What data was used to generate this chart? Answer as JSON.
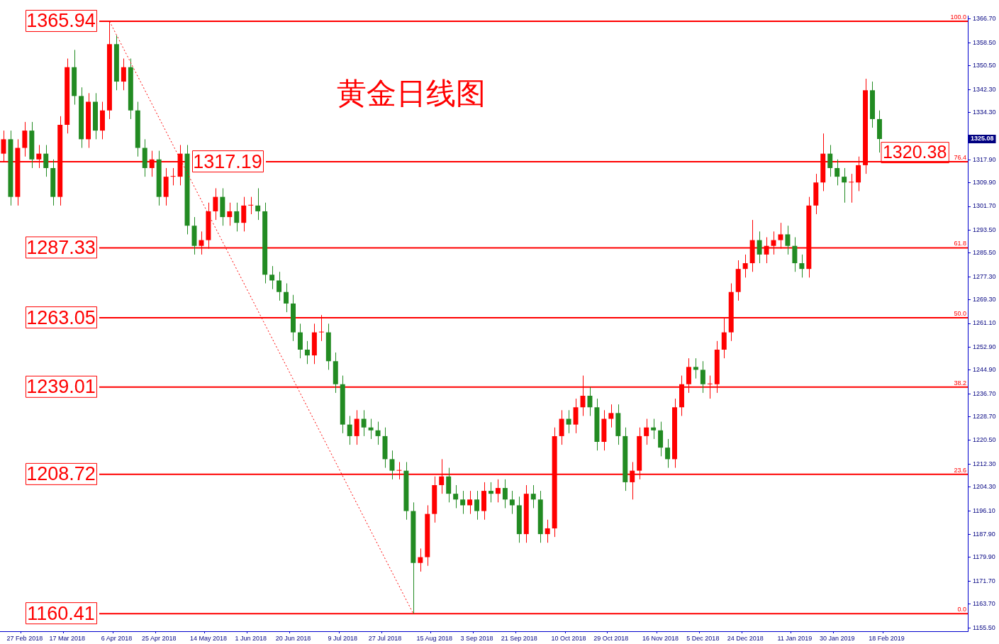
{
  "chart_data": {
    "type": "candlestick",
    "title": "黄金日线图",
    "categories": [
      null,
      null,
      null,
      "27 Feb 2018",
      null,
      null,
      null,
      null,
      null,
      "17 Mar 2018",
      null,
      null,
      null,
      null,
      null,
      null,
      "6 Apr 2018",
      null,
      null,
      null,
      null,
      null,
      "25 Apr 2018",
      null,
      null,
      null,
      null,
      null,
      null,
      "14 May 2018",
      null,
      null,
      null,
      null,
      null,
      "1 Jun 2018",
      null,
      null,
      null,
      null,
      null,
      "20 Jun 2018",
      null,
      null,
      null,
      null,
      null,
      null,
      "9 Jul 2018",
      null,
      null,
      null,
      null,
      null,
      "27 Jul 2018",
      null,
      null,
      null,
      null,
      null,
      null,
      "15 Aug 2018",
      null,
      null,
      null,
      null,
      null,
      "3 Sep 2018",
      null,
      null,
      null,
      null,
      null,
      "21 Sep 2018",
      null,
      null,
      null,
      null,
      null,
      null,
      "10 Oct 2018",
      null,
      null,
      null,
      null,
      null,
      "29 Oct 2018",
      null,
      null,
      null,
      null,
      null,
      null,
      "16 Nov 2018",
      null,
      null,
      null,
      null,
      null,
      "5 Dec 2018",
      null,
      null,
      null,
      null,
      null,
      "24 Dec 2018",
      null,
      null,
      null,
      null,
      null,
      null,
      "11 Jan 2019",
      null,
      null,
      null,
      null,
      null,
      "30 Jan 2019",
      null,
      null,
      null,
      null,
      null,
      null,
      "18 Feb 2019",
      null,
      null,
      null,
      null,
      null,
      null,
      null,
      null,
      null,
      null,
      null
    ],
    "ohlc": [
      [
        1320,
        1328,
        1317,
        1325
      ],
      [
        1325,
        1328,
        1302,
        1305
      ],
      [
        1305,
        1325,
        1302,
        1322
      ],
      [
        1322,
        1331,
        1319,
        1328
      ],
      [
        1328,
        1331,
        1315,
        1318
      ],
      [
        1318,
        1323,
        1315,
        1320
      ],
      [
        1320,
        1323,
        1312,
        1315
      ],
      [
        1315,
        1318,
        1302,
        1305
      ],
      [
        1305,
        1333,
        1302,
        1330
      ],
      [
        1330,
        1353,
        1327,
        1350
      ],
      [
        1350,
        1356,
        1337,
        1340
      ],
      [
        1340,
        1343,
        1322,
        1325
      ],
      [
        1325,
        1341,
        1322,
        1338
      ],
      [
        1338,
        1341,
        1325,
        1328
      ],
      [
        1328,
        1338,
        1325,
        1335
      ],
      [
        1335,
        1365.94,
        1332,
        1358
      ],
      [
        1358,
        1361,
        1342,
        1345
      ],
      [
        1345,
        1353,
        1342,
        1350
      ],
      [
        1350,
        1353,
        1332,
        1335
      ],
      [
        1335,
        1338,
        1319,
        1322
      ],
      [
        1322,
        1325,
        1312,
        1315
      ],
      [
        1315,
        1321,
        1312,
        1318
      ],
      [
        1318,
        1321,
        1302,
        1305
      ],
      [
        1305,
        1315,
        1302,
        1312
      ],
      [
        1312,
        1315,
        1309,
        1312
      ],
      [
        1312,
        1323,
        1309,
        1320
      ],
      [
        1320,
        1323,
        1292,
        1295
      ],
      [
        1295,
        1298,
        1285,
        1288
      ],
      [
        1288,
        1293,
        1285,
        1290
      ],
      [
        1290,
        1303,
        1287,
        1300
      ],
      [
        1300,
        1308,
        1297,
        1305
      ],
      [
        1305,
        1308,
        1295,
        1298
      ],
      [
        1298,
        1303,
        1295,
        1300
      ],
      [
        1300,
        1303,
        1293,
        1296
      ],
      [
        1296,
        1305,
        1293,
        1302
      ],
      [
        1302,
        1305,
        1299,
        1302
      ],
      [
        1302,
        1308,
        1297,
        1300
      ],
      [
        1300,
        1303,
        1275,
        1278
      ],
      [
        1278,
        1281,
        1273,
        1276
      ],
      [
        1276,
        1279,
        1269,
        1272
      ],
      [
        1272,
        1275,
        1265,
        1268
      ],
      [
        1268,
        1271,
        1255,
        1258
      ],
      [
        1258,
        1261,
        1249,
        1252
      ],
      [
        1252,
        1255,
        1247,
        1250
      ],
      [
        1250,
        1261,
        1247,
        1258
      ],
      [
        1258,
        1264,
        1255,
        1258
      ],
      [
        1258,
        1261,
        1245,
        1248
      ],
      [
        1248,
        1251,
        1237,
        1240
      ],
      [
        1240,
        1243,
        1223,
        1226
      ],
      [
        1226,
        1229,
        1219,
        1222
      ],
      [
        1222,
        1231,
        1219,
        1228
      ],
      [
        1228,
        1231,
        1222,
        1225
      ],
      [
        1225,
        1228,
        1221,
        1224
      ],
      [
        1224,
        1227,
        1219,
        1222
      ],
      [
        1222,
        1225,
        1211,
        1214
      ],
      [
        1214,
        1217,
        1207,
        1210
      ],
      [
        1210,
        1213,
        1207,
        1210
      ],
      [
        1210,
        1213,
        1193,
        1196
      ],
      [
        1196,
        1199,
        1160.41,
        1178
      ],
      [
        1178,
        1183,
        1175,
        1180
      ],
      [
        1180,
        1198,
        1177,
        1195
      ],
      [
        1195,
        1208,
        1192,
        1205
      ],
      [
        1205,
        1214,
        1202,
        1208
      ],
      [
        1208,
        1211,
        1199,
        1202
      ],
      [
        1202,
        1205,
        1197,
        1200
      ],
      [
        1200,
        1203,
        1195,
        1198
      ],
      [
        1198,
        1203,
        1195,
        1200
      ],
      [
        1200,
        1203,
        1193,
        1196
      ],
      [
        1196,
        1206,
        1193,
        1203
      ],
      [
        1203,
        1206,
        1199,
        1202
      ],
      [
        1202,
        1207,
        1199,
        1204
      ],
      [
        1204,
        1207,
        1197,
        1200
      ],
      [
        1200,
        1203,
        1195,
        1198
      ],
      [
        1198,
        1201,
        1185,
        1188
      ],
      [
        1188,
        1205,
        1185,
        1202
      ],
      [
        1202,
        1205,
        1197,
        1200
      ],
      [
        1200,
        1203,
        1185,
        1188
      ],
      [
        1188,
        1193,
        1185,
        1190
      ],
      [
        1190,
        1225,
        1187,
        1222
      ],
      [
        1222,
        1231,
        1219,
        1228
      ],
      [
        1228,
        1231,
        1223,
        1226
      ],
      [
        1226,
        1235,
        1223,
        1232
      ],
      [
        1232,
        1243,
        1229,
        1236
      ],
      [
        1236,
        1239,
        1229,
        1232
      ],
      [
        1232,
        1235,
        1217,
        1220
      ],
      [
        1220,
        1231,
        1217,
        1228
      ],
      [
        1228,
        1233,
        1225,
        1230
      ],
      [
        1230,
        1233,
        1219,
        1222
      ],
      [
        1222,
        1225,
        1203,
        1206
      ],
      [
        1206,
        1213,
        1200,
        1210
      ],
      [
        1210,
        1225,
        1207,
        1222
      ],
      [
        1222,
        1228,
        1219,
        1225
      ],
      [
        1225,
        1228,
        1221,
        1224
      ],
      [
        1224,
        1227,
        1215,
        1218
      ],
      [
        1218,
        1221,
        1211,
        1214
      ],
      [
        1214,
        1235,
        1211,
        1232
      ],
      [
        1232,
        1243,
        1229,
        1240
      ],
      [
        1240,
        1249,
        1237,
        1246
      ],
      [
        1246,
        1249,
        1242,
        1245
      ],
      [
        1245,
        1248,
        1237,
        1240
      ],
      [
        1240,
        1243,
        1235,
        1240
      ],
      [
        1240,
        1255,
        1237,
        1252
      ],
      [
        1252,
        1263,
        1249,
        1258
      ],
      [
        1258,
        1275,
        1255,
        1272
      ],
      [
        1272,
        1283,
        1269,
        1280
      ],
      [
        1280,
        1285,
        1277,
        1282
      ],
      [
        1282,
        1297,
        1279,
        1290
      ],
      [
        1290,
        1293,
        1282,
        1285
      ],
      [
        1285,
        1291,
        1282,
        1288
      ],
      [
        1288,
        1293,
        1285,
        1290
      ],
      [
        1290,
        1296,
        1287,
        1292
      ],
      [
        1292,
        1295,
        1285,
        1288
      ],
      [
        1288,
        1291,
        1279,
        1282
      ],
      [
        1282,
        1285,
        1277,
        1280
      ],
      [
        1280,
        1305,
        1277,
        1302
      ],
      [
        1302,
        1313,
        1299,
        1310
      ],
      [
        1310,
        1327,
        1307,
        1320
      ],
      [
        1320,
        1323,
        1312,
        1315
      ],
      [
        1315,
        1318,
        1309,
        1312
      ],
      [
        1312,
        1315,
        1303,
        1310
      ],
      [
        1310,
        1313,
        1303,
        1310
      ],
      [
        1310,
        1319,
        1307,
        1316
      ],
      [
        1316,
        1346,
        1313,
        1342
      ],
      [
        1342,
        1345,
        1329,
        1332
      ],
      [
        1332,
        1335,
        1320.38,
        1325.08
      ],
      null,
      null,
      null,
      null,
      null,
      null,
      null,
      null,
      null,
      null,
      null,
      null
    ],
    "colors": [
      "#ff0000",
      "#228b22",
      "#ff0000",
      "#ff0000",
      "#228b22",
      "#ff0000",
      "#228b22",
      "#228b22",
      "#ff0000",
      "#ff0000",
      "#228b22",
      "#228b22",
      "#ff0000",
      "#228b22",
      "#ff0000",
      "#ff0000",
      "#228b22",
      "#ff0000",
      "#228b22",
      "#228b22",
      "#228b22",
      "#ff0000",
      "#228b22",
      "#ff0000",
      "#ff0000",
      "#ff0000",
      "#228b22",
      "#228b22",
      "#ff0000",
      "#ff0000",
      "#ff0000",
      "#228b22",
      "#ff0000",
      "#228b22",
      "#ff0000",
      "#ff0000",
      "#228b22",
      "#228b22",
      "#228b22",
      "#228b22",
      "#228b22",
      "#228b22",
      "#228b22",
      "#228b22",
      "#ff0000",
      "#ff0000",
      "#228b22",
      "#228b22",
      "#228b22",
      "#228b22",
      "#ff0000",
      "#228b22",
      "#228b22",
      "#228b22",
      "#228b22",
      "#228b22",
      "#ff0000",
      "#228b22",
      "#228b22",
      "#ff0000",
      "#ff0000",
      "#ff0000",
      "#ff0000",
      "#228b22",
      "#228b22",
      "#228b22",
      "#ff0000",
      "#228b22",
      "#ff0000",
      "#228b22",
      "#ff0000",
      "#228b22",
      "#228b22",
      "#228b22",
      "#ff0000",
      "#228b22",
      "#228b22",
      "#ff0000",
      "#ff0000",
      "#ff0000",
      "#228b22",
      "#ff0000",
      "#ff0000",
      "#228b22",
      "#228b22",
      "#ff0000",
      "#ff0000",
      "#228b22",
      "#228b22",
      "#ff0000",
      "#ff0000",
      "#ff0000",
      "#228b22",
      "#228b22",
      "#228b22",
      "#ff0000",
      "#ff0000",
      "#ff0000",
      "#228b22",
      "#228b22",
      "#ff0000",
      "#ff0000",
      "#ff0000",
      "#ff0000",
      "#ff0000",
      "#ff0000",
      "#ff0000",
      "#228b22",
      "#ff0000",
      "#ff0000",
      "#ff0000",
      "#228b22",
      "#228b22",
      "#228b22",
      "#ff0000",
      "#ff0000",
      "#ff0000",
      "#228b22",
      "#228b22",
      "#228b22",
      "#ff0000",
      "#ff0000",
      "#ff0000",
      "#228b22",
      "#228b22",
      null,
      null,
      null,
      null,
      null,
      null,
      null,
      null,
      null,
      null,
      null,
      null
    ],
    "series": [
      {
        "type": "line",
        "color": "#ff0000",
        "line_style": "dotted",
        "values": [
          null,
          null,
          null,
          null,
          null,
          null,
          null,
          null,
          null,
          null,
          null,
          null,
          null,
          null,
          null,
          1365.94,
          null,
          null,
          null,
          null,
          null,
          null,
          null,
          null,
          null,
          null,
          null,
          null,
          null,
          null,
          null,
          null,
          null,
          null,
          null,
          null,
          null,
          null,
          null,
          null,
          null,
          null,
          null,
          null,
          null,
          null,
          null,
          null,
          null,
          null,
          null,
          null,
          null,
          null,
          null,
          null,
          null,
          null,
          1160.41,
          null,
          null,
          null,
          null,
          null,
          null,
          null,
          null,
          null,
          null,
          null,
          null,
          null,
          null,
          null,
          null,
          null,
          null,
          null,
          null,
          null,
          null,
          null,
          null,
          null,
          null,
          null,
          null,
          null,
          null,
          null,
          null,
          null,
          null,
          null,
          null,
          null,
          null,
          null,
          null,
          null,
          null,
          null,
          null,
          null,
          null,
          null,
          null,
          null,
          null,
          null,
          null,
          null,
          null,
          null,
          null,
          null,
          null,
          null,
          null,
          null,
          null,
          null,
          null,
          null,
          null,
          null,
          null,
          null,
          null,
          null,
          null,
          null,
          null,
          null,
          null,
          null,
          null
        ]
      }
    ],
    "ylim": [
      1154.3,
      1367.9
    ],
    "yticks": [
      {
        "value": 1155.5,
        "label": "1155.50"
      },
      {
        "value": 1163.7,
        "label": "1163.70"
      },
      {
        "value": 1171.7,
        "label": "1171.70"
      },
      {
        "value": 1179.9,
        "label": "1179.90"
      },
      {
        "value": 1187.9,
        "label": "1187.90"
      },
      {
        "value": 1196.1,
        "label": "1196.10"
      },
      {
        "value": 1204.3,
        "label": "1204.30"
      },
      {
        "value": 1212.3,
        "label": "1212.30"
      },
      {
        "value": 1220.5,
        "label": "1220.50"
      },
      {
        "value": 1228.7,
        "label": "1228.70"
      },
      {
        "value": 1236.7,
        "label": "1236.70"
      },
      {
        "value": 1244.9,
        "label": "1244.90"
      },
      {
        "value": 1252.9,
        "label": "1252.90"
      },
      {
        "value": 1261.1,
        "label": "1261.10"
      },
      {
        "value": 1269.3,
        "label": "1269.30"
      },
      {
        "value": 1277.3,
        "label": "1277.30"
      },
      {
        "value": 1285.5,
        "label": "1285.50"
      },
      {
        "value": 1293.5,
        "label": "1293.50"
      },
      {
        "value": 1301.7,
        "label": "1301.70"
      },
      {
        "value": 1309.9,
        "label": "1309.90"
      },
      {
        "value": 1317.9,
        "label": "1317.90"
      },
      {
        "value": 1326.1,
        "label": null
      },
      {
        "value": 1334.3,
        "label": "1334.30"
      },
      {
        "value": 1342.3,
        "label": "1342.30"
      },
      {
        "value": 1350.5,
        "label": "1350.50"
      },
      {
        "value": 1358.5,
        "label": "1358.50"
      },
      {
        "value": 1366.7,
        "label": "1366.70"
      }
    ],
    "ref_lines": [
      {
        "axis": "y",
        "value": 1365.94,
        "label": "1365.94",
        "color": "#ff0000"
      },
      {
        "axis": "y",
        "value": 1317.19,
        "label": "1317.19",
        "color": "#ff0000"
      },
      {
        "axis": "y",
        "value": 1287.33,
        "label": "1287.33",
        "color": "#ff0000"
      },
      {
        "axis": "y",
        "value": 1263.05,
        "label": "1263.05",
        "color": "#ff0000"
      },
      {
        "axis": "y",
        "value": 1239.01,
        "label": "1239.01",
        "color": "#ff0000"
      },
      {
        "axis": "y",
        "value": 1208.72,
        "label": "1208.72",
        "color": "#ff0000"
      },
      {
        "axis": "y",
        "value": 1160.41,
        "label": "1160.41",
        "color": "#ff0000"
      }
    ],
    "annotations": [
      {
        "text": "100.0",
        "y": 1365.94
      },
      {
        "text": "76.4",
        "y": 1317.19
      },
      {
        "text": "61.8",
        "y": 1287.33
      },
      {
        "text": "50.0",
        "y": 1263.05
      },
      {
        "text": "38.2",
        "y": 1239.01
      },
      {
        "text": "23.6",
        "y": 1208.72
      },
      {
        "text": "0.0",
        "y": 1160.41
      },
      "1320.38",
      {
        "text": "1325.08",
        "y": 1325.08
      }
    ]
  }
}
